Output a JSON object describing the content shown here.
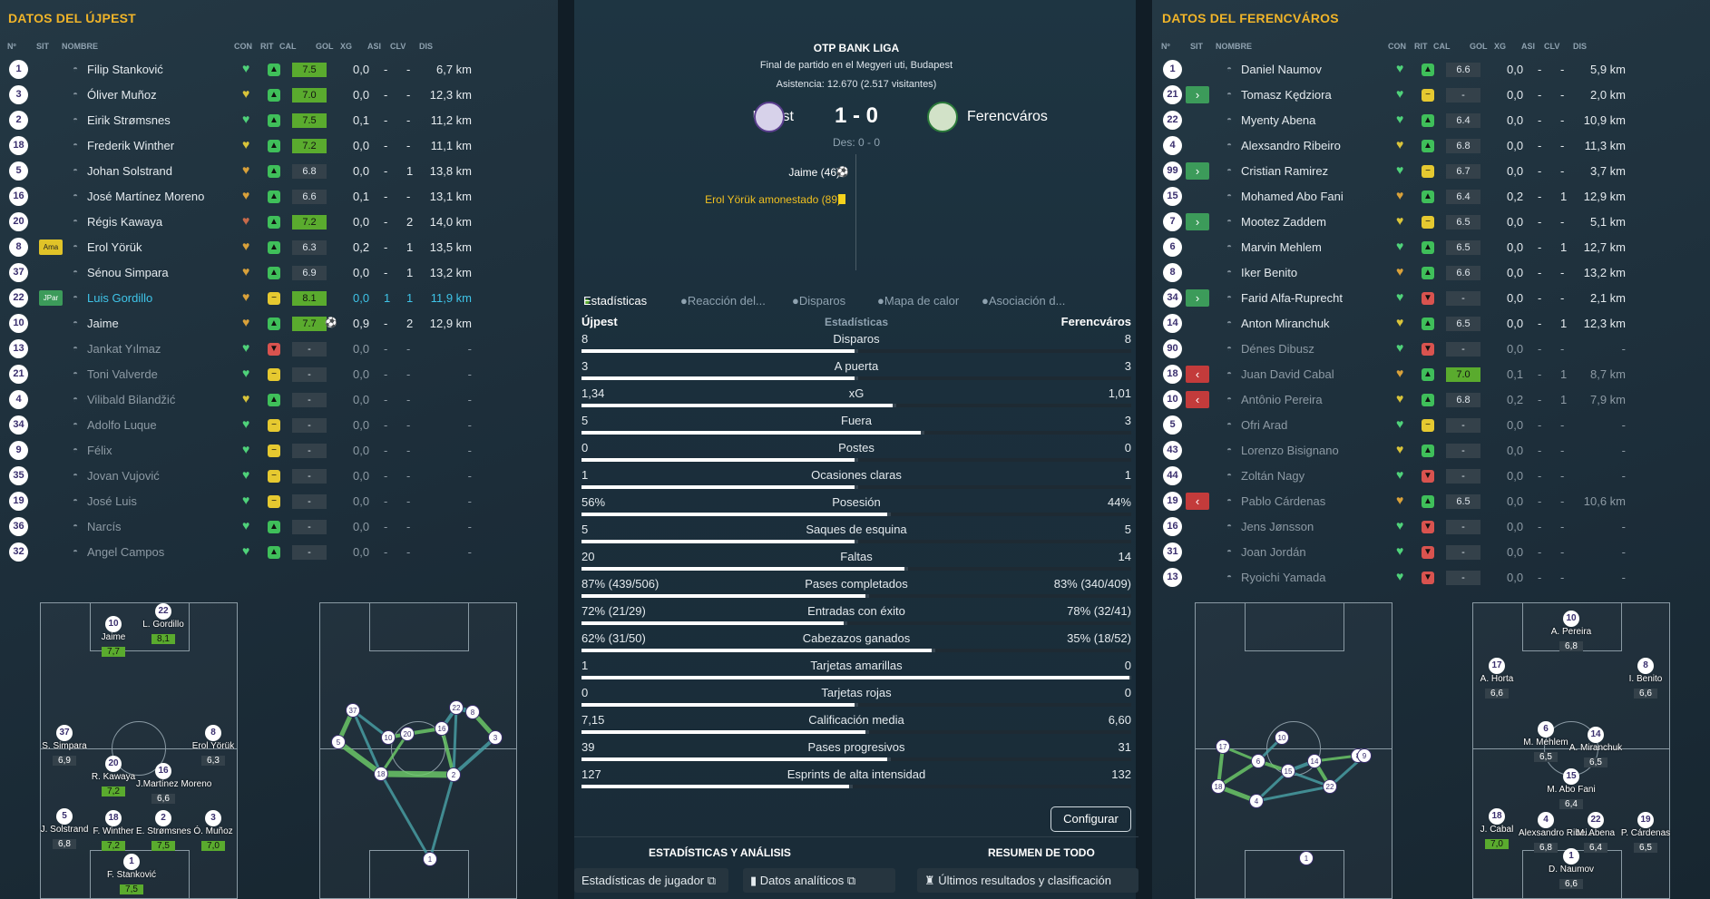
{
  "left": {
    "title": "DATOS DEL ÚJPEST",
    "headers": [
      "Nº",
      "SIT",
      "NOMBRE",
      "CON",
      "RIT",
      "CAL",
      "GOL",
      "XG",
      "ASI",
      "CLV",
      "DIS"
    ],
    "rows": [
      {
        "num": "1",
        "sit": "",
        "name": "Filip Stanković",
        "con": "g",
        "rit": "g",
        "cal": "7.5",
        "calc": "g",
        "gol": "",
        "xg": "0,0",
        "asi": "-",
        "clv": "-",
        "dis": "6,7 km",
        "st": ""
      },
      {
        "num": "3",
        "sit": "",
        "name": "Óliver Muñoz",
        "con": "y",
        "rit": "g",
        "cal": "7.0",
        "calc": "g",
        "gol": "",
        "xg": "0,0",
        "asi": "-",
        "clv": "-",
        "dis": "12,3 km",
        "st": ""
      },
      {
        "num": "2",
        "sit": "",
        "name": "Eirik Strømsnes",
        "con": "g",
        "rit": "g",
        "cal": "7.5",
        "calc": "g",
        "gol": "",
        "xg": "0,1",
        "asi": "-",
        "clv": "-",
        "dis": "11,2 km",
        "st": ""
      },
      {
        "num": "18",
        "sit": "",
        "name": "Frederik Winther",
        "con": "y",
        "rit": "g",
        "cal": "7.2",
        "calc": "g",
        "gol": "",
        "xg": "0,0",
        "asi": "-",
        "clv": "-",
        "dis": "11,1 km",
        "st": ""
      },
      {
        "num": "5",
        "sit": "",
        "name": "Johan Solstrand",
        "con": "o",
        "rit": "g",
        "cal": "6.8",
        "calc": "d",
        "gol": "",
        "xg": "0,0",
        "asi": "-",
        "clv": "1",
        "dis": "13,8 km",
        "st": ""
      },
      {
        "num": "16",
        "sit": "",
        "name": "José Martínez Moreno",
        "con": "o",
        "rit": "g",
        "cal": "6.6",
        "calc": "d",
        "gol": "",
        "xg": "0,1",
        "asi": "-",
        "clv": "-",
        "dis": "13,1 km",
        "st": ""
      },
      {
        "num": "20",
        "sit": "",
        "name": "Régis Kawaya",
        "con": "r",
        "rit": "g",
        "cal": "7.2",
        "calc": "g",
        "gol": "",
        "xg": "0,0",
        "asi": "-",
        "clv": "2",
        "dis": "14,0 km",
        "st": ""
      },
      {
        "num": "8",
        "sit": "Ama",
        "name": "Erol Yörük",
        "con": "o",
        "rit": "g",
        "cal": "6.3",
        "calc": "d",
        "gol": "",
        "xg": "0,2",
        "asi": "-",
        "clv": "1",
        "dis": "13,5 km",
        "st": ""
      },
      {
        "num": "37",
        "sit": "",
        "name": "Sénou Simpara",
        "con": "o",
        "rit": "g",
        "cal": "6.9",
        "calc": "d",
        "gol": "",
        "xg": "0,0",
        "asi": "-",
        "clv": "1",
        "dis": "13,2 km",
        "st": ""
      },
      {
        "num": "22",
        "sit": "JPar",
        "name": "Luis Gordillo",
        "con": "o",
        "rit": "y",
        "cal": "8.1",
        "calc": "g",
        "gol": "",
        "xg": "0,0",
        "asi": "1",
        "clv": "1",
        "dis": "11,9 km",
        "st": "hl"
      },
      {
        "num": "10",
        "sit": "",
        "name": "Jaime",
        "con": "o",
        "rit": "g",
        "cal": "7.7",
        "calc": "g",
        "gol": "⚽",
        "xg": "0,9",
        "asi": "-",
        "clv": "2",
        "dis": "12,9 km",
        "st": ""
      },
      {
        "num": "13",
        "sit": "",
        "name": "Jankat Yılmaz",
        "con": "g",
        "rit": "r",
        "cal": "-",
        "calc": "d",
        "gol": "",
        "xg": "0,0",
        "asi": "-",
        "clv": "-",
        "dis": "-",
        "st": "dim"
      },
      {
        "num": "21",
        "sit": "",
        "name": "Toni Valverde",
        "con": "g",
        "rit": "y",
        "cal": "-",
        "calc": "d",
        "gol": "",
        "xg": "0,0",
        "asi": "-",
        "clv": "-",
        "dis": "-",
        "st": "dim"
      },
      {
        "num": "4",
        "sit": "",
        "name": "Vilibald Bilandžić",
        "con": "y",
        "rit": "g",
        "cal": "-",
        "calc": "d",
        "gol": "",
        "xg": "0,0",
        "asi": "-",
        "clv": "-",
        "dis": "-",
        "st": "dim"
      },
      {
        "num": "34",
        "sit": "",
        "name": "Adolfo Luque",
        "con": "g",
        "rit": "y",
        "cal": "-",
        "calc": "d",
        "gol": "",
        "xg": "0,0",
        "asi": "-",
        "clv": "-",
        "dis": "-",
        "st": "dim"
      },
      {
        "num": "9",
        "sit": "",
        "name": "Félix",
        "con": "g",
        "rit": "y",
        "cal": "-",
        "calc": "d",
        "gol": "",
        "xg": "0,0",
        "asi": "-",
        "clv": "-",
        "dis": "-",
        "st": "dim"
      },
      {
        "num": "35",
        "sit": "",
        "name": "Jovan Vujović",
        "con": "g",
        "rit": "y",
        "cal": "-",
        "calc": "d",
        "gol": "",
        "xg": "0,0",
        "asi": "-",
        "clv": "-",
        "dis": "-",
        "st": "dim"
      },
      {
        "num": "19",
        "sit": "",
        "name": "José Luis",
        "con": "g",
        "rit": "y",
        "cal": "-",
        "calc": "d",
        "gol": "",
        "xg": "0,0",
        "asi": "-",
        "clv": "-",
        "dis": "-",
        "st": "dim"
      },
      {
        "num": "36",
        "sit": "",
        "name": "Narcís",
        "con": "g",
        "rit": "g",
        "cal": "-",
        "calc": "d",
        "gol": "",
        "xg": "0,0",
        "asi": "-",
        "clv": "-",
        "dis": "-",
        "st": "dim"
      },
      {
        "num": "32",
        "sit": "",
        "name": "Angel Campos",
        "con": "g",
        "rit": "g",
        "cal": "-",
        "calc": "d",
        "gol": "",
        "xg": "0,0",
        "asi": "-",
        "clv": "-",
        "dis": "-",
        "st": "dim"
      }
    ],
    "formation": [
      {
        "n": "10",
        "name": "Jaime",
        "r": "7,7",
        "g": true
      },
      {
        "n": "22",
        "name": "L. Gordillo",
        "r": "8,1",
        "g": true
      },
      {
        "n": "37",
        "name": "S. Simpara",
        "r": "6,9",
        "g": false
      },
      {
        "n": "8",
        "name": "Erol Yörük",
        "r": "6,3",
        "g": false
      },
      {
        "n": "20",
        "name": "R. Kawaya",
        "r": "7,2",
        "g": true
      },
      {
        "n": "16",
        "name": "J.Martínez Moreno",
        "r": "6,6",
        "g": false
      },
      {
        "n": "5",
        "name": "J. Solstrand",
        "r": "6,8",
        "g": false
      },
      {
        "n": "18",
        "name": "F. Winther",
        "r": "7,2",
        "g": true
      },
      {
        "n": "2",
        "name": "E. Strømsnes",
        "r": "7,5",
        "g": true
      },
      {
        "n": "3",
        "name": "Ó. Muñoz",
        "r": "7,0",
        "g": true
      },
      {
        "n": "1",
        "name": "F. Stanković",
        "r": "7,5",
        "g": true
      }
    ],
    "passnet": [
      "37",
      "10",
      "22",
      "8",
      "5",
      "20",
      "16",
      "3",
      "18",
      "2",
      "1"
    ]
  },
  "right": {
    "title": "DATOS DEL FERENCVÁROS",
    "headers": [
      "Nº",
      "SIT",
      "NOMBRE",
      "CON",
      "RIT",
      "CAL",
      "GOL",
      "XG",
      "ASI",
      "CLV",
      "DIS"
    ],
    "rows": [
      {
        "num": "1",
        "sub": "",
        "name": "Daniel Naumov",
        "con": "g",
        "rit": "g",
        "cal": "6.6",
        "calc": "d",
        "xg": "0,0",
        "asi": "-",
        "clv": "-",
        "dis": "5,9 km",
        "st": ""
      },
      {
        "num": "21",
        "sub": "in",
        "name": "Tomasz Kędziora",
        "con": "g",
        "rit": "y",
        "cal": "-",
        "calc": "d",
        "xg": "0,0",
        "asi": "-",
        "clv": "-",
        "dis": "2,0 km",
        "st": ""
      },
      {
        "num": "22",
        "sub": "",
        "name": "Myenty Abena",
        "con": "g",
        "rit": "g",
        "cal": "6.4",
        "calc": "d",
        "xg": "0,0",
        "asi": "-",
        "clv": "-",
        "dis": "10,9 km",
        "st": ""
      },
      {
        "num": "4",
        "sub": "",
        "name": "Alexsandro Ribeiro",
        "con": "y",
        "rit": "g",
        "cal": "6.8",
        "calc": "d",
        "xg": "0,0",
        "asi": "-",
        "clv": "-",
        "dis": "11,3 km",
        "st": ""
      },
      {
        "num": "99",
        "sub": "in",
        "name": "Cristian Ramirez",
        "con": "g",
        "rit": "y",
        "cal": "6.7",
        "calc": "d",
        "xg": "0,0",
        "asi": "-",
        "clv": "-",
        "dis": "3,7 km",
        "st": ""
      },
      {
        "num": "15",
        "sub": "",
        "name": "Mohamed Abo Fani",
        "con": "o",
        "rit": "g",
        "cal": "6.4",
        "calc": "d",
        "xg": "0,2",
        "asi": "-",
        "clv": "1",
        "dis": "12,9 km",
        "st": ""
      },
      {
        "num": "7",
        "sub": "in",
        "name": "Mootez Zaddem",
        "con": "y",
        "rit": "y",
        "cal": "6.5",
        "calc": "d",
        "xg": "0,0",
        "asi": "-",
        "clv": "-",
        "dis": "5,1 km",
        "st": ""
      },
      {
        "num": "6",
        "sub": "",
        "name": "Marvin Mehlem",
        "con": "g",
        "rit": "g",
        "cal": "6.5",
        "calc": "d",
        "xg": "0,0",
        "asi": "-",
        "clv": "1",
        "dis": "12,7 km",
        "st": ""
      },
      {
        "num": "8",
        "sub": "",
        "name": "Iker Benito",
        "con": "o",
        "rit": "g",
        "cal": "6.6",
        "calc": "d",
        "xg": "0,0",
        "asi": "-",
        "clv": "-",
        "dis": "13,2 km",
        "st": ""
      },
      {
        "num": "34",
        "sub": "in",
        "name": "Farid Alfa-Ruprecht",
        "con": "g",
        "rit": "r",
        "cal": "-",
        "calc": "d",
        "xg": "0,0",
        "asi": "-",
        "clv": "-",
        "dis": "2,1 km",
        "st": ""
      },
      {
        "num": "14",
        "sub": "",
        "name": "Anton Miranchuk",
        "con": "y",
        "rit": "g",
        "cal": "6.5",
        "calc": "d",
        "xg": "0,0",
        "asi": "-",
        "clv": "1",
        "dis": "12,3 km",
        "st": ""
      },
      {
        "num": "90",
        "sub": "",
        "name": "Dénes Dibusz",
        "con": "g",
        "rit": "r",
        "cal": "-",
        "calc": "d",
        "xg": "0,0",
        "asi": "-",
        "clv": "-",
        "dis": "-",
        "st": "dim"
      },
      {
        "num": "18",
        "sub": "out",
        "name": "Juan David Cabal",
        "con": "o",
        "rit": "g",
        "cal": "7.0",
        "calc": "g",
        "xg": "0,1",
        "asi": "-",
        "clv": "1",
        "dis": "8,7 km",
        "st": "dim"
      },
      {
        "num": "10",
        "sub": "out",
        "name": "Antônio Pereira",
        "con": "y",
        "rit": "g",
        "cal": "6.8",
        "calc": "d",
        "xg": "0,2",
        "asi": "-",
        "clv": "1",
        "dis": "7,9 km",
        "st": "dim"
      },
      {
        "num": "5",
        "sub": "",
        "name": "Ofri Arad",
        "con": "g",
        "rit": "y",
        "cal": "-",
        "calc": "d",
        "xg": "0,0",
        "asi": "-",
        "clv": "-",
        "dis": "-",
        "st": "dim"
      },
      {
        "num": "43",
        "sub": "",
        "name": "Lorenzo Bisignano",
        "con": "y",
        "rit": "g",
        "cal": "-",
        "calc": "d",
        "xg": "0,0",
        "asi": "-",
        "clv": "-",
        "dis": "-",
        "st": "dim"
      },
      {
        "num": "44",
        "sub": "",
        "name": "Zoltán Nagy",
        "con": "g",
        "rit": "r",
        "cal": "-",
        "calc": "d",
        "xg": "0,0",
        "asi": "-",
        "clv": "-",
        "dis": "-",
        "st": "dim"
      },
      {
        "num": "19",
        "sub": "out",
        "name": "Pablo Cárdenas",
        "con": "o",
        "rit": "g",
        "cal": "6.5",
        "calc": "d",
        "xg": "0,0",
        "asi": "-",
        "clv": "-",
        "dis": "10,6 km",
        "st": "dim"
      },
      {
        "num": "16",
        "sub": "",
        "name": "Jens Jønsson",
        "con": "g",
        "rit": "r",
        "cal": "-",
        "calc": "d",
        "xg": "0,0",
        "asi": "-",
        "clv": "-",
        "dis": "-",
        "st": "dim"
      },
      {
        "num": "31",
        "sub": "",
        "name": "Joan Jordán",
        "con": "g",
        "rit": "r",
        "cal": "-",
        "calc": "d",
        "xg": "0,0",
        "asi": "-",
        "clv": "-",
        "dis": "-",
        "st": "dim"
      },
      {
        "num": "13",
        "sub": "",
        "name": "Ryoichi Yamada",
        "con": "g",
        "rit": "r",
        "cal": "-",
        "calc": "d",
        "xg": "0,0",
        "asi": "-",
        "clv": "-",
        "dis": "-",
        "st": "dim"
      }
    ],
    "formation": [
      {
        "n": "10",
        "name": "A. Pereira",
        "r": "6,8",
        "g": false
      },
      {
        "n": "17",
        "name": "A. Horta",
        "r": "6,6",
        "g": false
      },
      {
        "n": "8",
        "name": "I. Benito",
        "r": "6,6",
        "g": false
      },
      {
        "n": "6",
        "name": "M. Mehlem",
        "r": "6,5",
        "g": false
      },
      {
        "n": "14",
        "name": "A. Miranchuk",
        "r": "6,5",
        "g": false
      },
      {
        "n": "15",
        "name": "M. Abo Fani",
        "r": "6,4",
        "g": false
      },
      {
        "n": "18",
        "name": "J. Cabal",
        "r": "7,0",
        "g": true
      },
      {
        "n": "4",
        "name": "Alexsandro Ribei...",
        "r": "6,8",
        "g": false
      },
      {
        "n": "22",
        "name": "M. Abena",
        "r": "6,4",
        "g": false
      },
      {
        "n": "19",
        "name": "P. Cárdenas",
        "r": "6,5",
        "g": false
      },
      {
        "n": "1",
        "name": "D. Naumov",
        "r": "6,6",
        "g": false
      }
    ],
    "passnet": [
      "17",
      "10",
      "6",
      "15",
      "14",
      "8",
      "9",
      "18",
      "4",
      "22",
      "1"
    ]
  },
  "match": {
    "league": "OTP BANK LIGA",
    "venue": "Final de partido en el Megyeri uti, Budapest",
    "attendance": "Asistencia: 12.670 (2.517 visitantes)",
    "home": "Újpest",
    "away": "Ferencváros",
    "score": "1 - 0",
    "halftime": "Des: 0 - 0",
    "goal": "Jaime (46)",
    "card": "Erol Yörük amonestado (89)"
  },
  "tabs": [
    "Estadísticas",
    "Reacción del...",
    "Disparos",
    "Mapa de calor",
    "Asociación d..."
  ],
  "stats_header": {
    "home": "Újpest",
    "mid": "Estadísticas",
    "away": "Ferencváros"
  },
  "stats": [
    {
      "l": "8",
      "label": "Disparos",
      "r": "8",
      "lw": 0.5
    },
    {
      "l": "3",
      "label": "A puerta",
      "r": "3",
      "lw": 0.5
    },
    {
      "l": "1,34",
      "label": "xG",
      "r": "1,01",
      "lw": 0.57
    },
    {
      "l": "5",
      "label": "Fuera",
      "r": "3",
      "lw": 0.62
    },
    {
      "l": "0",
      "label": "Postes",
      "r": "0",
      "lw": 0.5
    },
    {
      "l": "1",
      "label": "Ocasiones claras",
      "r": "1",
      "lw": 0.5
    },
    {
      "l": "56%",
      "label": "Posesión",
      "r": "44%",
      "lw": 0.56
    },
    {
      "l": "5",
      "label": "Saques de esquina",
      "r": "5",
      "lw": 0.5
    },
    {
      "l": "20",
      "label": "Faltas",
      "r": "14",
      "lw": 0.59
    },
    {
      "l": "87% (439/506)",
      "label": "Pases completados",
      "r": "83% (340/409)",
      "lw": 0.52
    },
    {
      "l": "72% (21/29)",
      "label": "Entradas con éxito",
      "r": "78% (32/41)",
      "lw": 0.48
    },
    {
      "l": "62% (31/50)",
      "label": "Cabezazos ganados",
      "r": "35% (18/52)",
      "lw": 0.64
    },
    {
      "l": "1",
      "label": "Tarjetas amarillas",
      "r": "0",
      "lw": 1.0
    },
    {
      "l": "0",
      "label": "Tarjetas rojas",
      "r": "0",
      "lw": 0.5
    },
    {
      "l": "7,15",
      "label": "Calificación media",
      "r": "6,60",
      "lw": 0.52
    },
    {
      "l": "39",
      "label": "Pases progresivos",
      "r": "31",
      "lw": 0.56
    },
    {
      "l": "127",
      "label": "Esprints de alta intensidad",
      "r": "132",
      "lw": 0.49
    }
  ],
  "buttons": {
    "configure": "Configurar",
    "sec_left": "ESTADÍSTICAS Y ANÁLISIS",
    "sec_right": "RESUMEN DE TODO",
    "player_stats": "Estadísticas de jugador",
    "analytics": "Datos analíticos",
    "results": "Últimos resultados y clasificación"
  },
  "colors": {
    "accent": "#f0b429",
    "green": "#5aab2e",
    "sub_in": "#3c9b5a",
    "sub_out": "#c33b3b"
  }
}
